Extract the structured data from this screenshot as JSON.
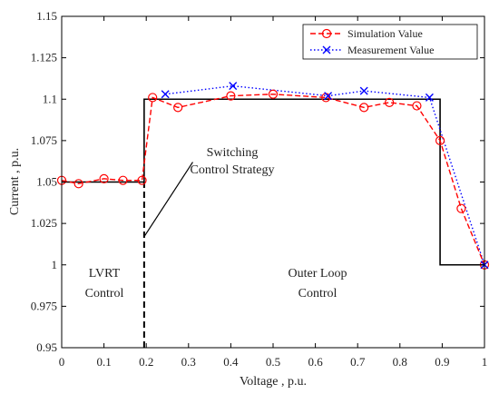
{
  "chart_data": {
    "type": "line",
    "title": "",
    "xlabel": "Voltage , p.u.",
    "ylabel": "Current , p.u.",
    "xlim": [
      0,
      1
    ],
    "ylim": [
      0.95,
      1.15
    ],
    "grid": false,
    "legend_position": "top-right",
    "xticks": [
      "0",
      "0.1",
      "0.2",
      "0.3",
      "0.4",
      "0.5",
      "0.6",
      "0.7",
      "0.8",
      "0.9",
      "1"
    ],
    "yticks": [
      "0.95",
      "0.975",
      "1",
      "1.025",
      "1.05",
      "1.075",
      "1.1",
      "1.125",
      "1.15"
    ],
    "series": [
      {
        "name": "Simulation Value",
        "color": "#ff0000",
        "line_style": "dashed",
        "marker": "circle",
        "x": [
          0,
          0.04,
          0.1,
          0.145,
          0.19,
          0.215,
          0.275,
          0.4,
          0.5,
          0.625,
          0.715,
          0.775,
          0.84,
          0.895,
          0.945,
          1
        ],
        "y": [
          1.051,
          1.049,
          1.052,
          1.051,
          1.051,
          1.101,
          1.095,
          1.102,
          1.103,
          1.101,
          1.095,
          1.098,
          1.096,
          1.075,
          1.034,
          1.0
        ]
      },
      {
        "name": "Measurement Value",
        "color": "#0000ff",
        "line_style": "dotted",
        "marker": "x",
        "x": [
          0.245,
          0.405,
          0.63,
          0.715,
          0.87,
          1
        ],
        "y": [
          1.103,
          1.108,
          1.102,
          1.105,
          1.101,
          1.0
        ]
      },
      {
        "name": "",
        "color": "#000000",
        "line_style": "solid",
        "marker": "none",
        "x": [
          0,
          0.195,
          0.195,
          0.895,
          0.895,
          1
        ],
        "y": [
          1.05,
          1.05,
          1.1,
          1.1,
          1.0,
          1.0
        ]
      }
    ],
    "reference_line": {
      "x": 0.195,
      "y_from": 0.95,
      "y_to": 1.05,
      "style": "dashed",
      "color": "#000000"
    },
    "annotations": {
      "switching_line1": "Switching",
      "switching_line2": "Control Strategy",
      "lvrt_line1": "LVRT",
      "lvrt_line2": "Control",
      "outer_line1": "Outer Loop",
      "outer_line2": "Control"
    },
    "annotation_pointer": {
      "from": [
        0.195,
        1.017
      ],
      "to": [
        0.31,
        1.062
      ]
    }
  }
}
